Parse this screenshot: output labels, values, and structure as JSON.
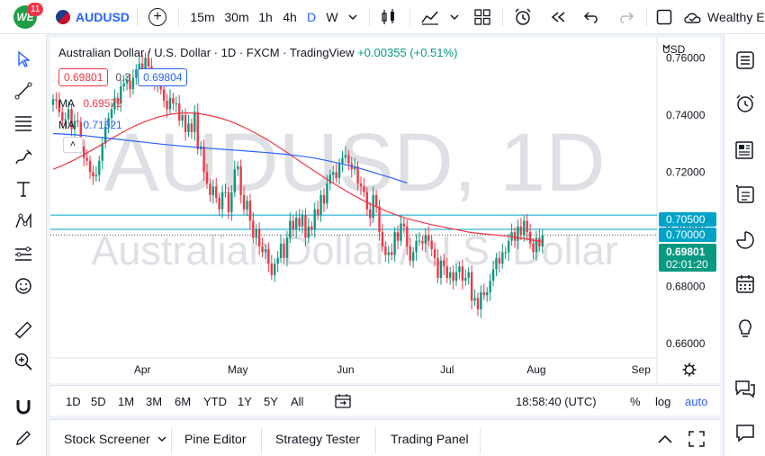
{
  "header": {
    "notification_count": "11",
    "logo_text": "WE",
    "symbol": "AUDUSD",
    "add_symbol": "+",
    "timeframes": [
      "15m",
      "30m",
      "1h",
      "4h",
      "D",
      "W"
    ],
    "active_timeframe": "D",
    "account_label": "Wealthy E"
  },
  "legend": {
    "instrument": "Australian Dollar / U.S. Dollar · 1D · FXCM · TradingView",
    "change": "+0.00355 (+0.51%)",
    "sell_price": "0.69801",
    "spread": "0.3",
    "buy_price": "0.69804",
    "ma1_label": "MA",
    "ma1_value": "0.69572",
    "ma2_label": "MA",
    "ma2_value": "0.71621",
    "collapse": "˄"
  },
  "watermark": {
    "main": "AUDUSD, 1D",
    "sub": "Australian Dollar / U.S. Dollar"
  },
  "price_axis": {
    "currency": "USD",
    "ticks": [
      "0.76000",
      "0.74000",
      "0.72000",
      "0.70000",
      "0.68000",
      "0.66000"
    ],
    "tag_upper": "0.70500",
    "tag_lower": "0.70000",
    "current_price": "0.69801",
    "countdown": "02:01:20"
  },
  "time_axis": {
    "labels": [
      "Apr",
      "May",
      "Jun",
      "Jul",
      "Aug",
      "Sep"
    ]
  },
  "range_bar": {
    "ranges": [
      "1D",
      "5D",
      "1M",
      "3M",
      "6M",
      "YTD",
      "1Y",
      "5Y",
      "All"
    ],
    "clock": "18:58:40 (UTC)",
    "percent": "%",
    "log": "log",
    "auto": "auto"
  },
  "bottom_tabs": [
    "Stock Screener",
    "Pine Editor",
    "Strategy Tester",
    "Trading Panel"
  ],
  "colors": {
    "up": "#089981",
    "down": "#f23645",
    "ma_fast": "#f23645",
    "ma_slow": "#2962ff",
    "hline": "#00a3c7",
    "accent": "#2962ff"
  },
  "chart_data": {
    "type": "candlestick",
    "y_range": [
      0.655,
      0.767
    ],
    "x_labels": [
      "Apr",
      "May",
      "Jun",
      "Jul",
      "Aug",
      "Sep"
    ],
    "horizontal_levels": [
      0.705,
      0.7
    ],
    "last_price": 0.69801,
    "closes": [
      0.7455,
      0.745,
      0.741,
      0.738,
      0.7385,
      0.742,
      0.735,
      0.738,
      0.7375,
      0.729,
      0.725,
      0.724,
      0.72,
      0.7185,
      0.719,
      0.724,
      0.73,
      0.736,
      0.739,
      0.742,
      0.746,
      0.744,
      0.75,
      0.751,
      0.752,
      0.749,
      0.753,
      0.756,
      0.758,
      0.755,
      0.76,
      0.757,
      0.754,
      0.751,
      0.752,
      0.749,
      0.745,
      0.742,
      0.746,
      0.744,
      0.744,
      0.738,
      0.74,
      0.734,
      0.737,
      0.734,
      0.741,
      0.728,
      0.729,
      0.72,
      0.716,
      0.712,
      0.715,
      0.711,
      0.707,
      0.713,
      0.713,
      0.706,
      0.713,
      0.721,
      0.722,
      0.712,
      0.707,
      0.71,
      0.703,
      0.697,
      0.7,
      0.694,
      0.692,
      0.693,
      0.688,
      0.684,
      0.688,
      0.69,
      0.695,
      0.69,
      0.697,
      0.703,
      0.7,
      0.704,
      0.701,
      0.705,
      0.697,
      0.701,
      0.7,
      0.707,
      0.705,
      0.712,
      0.709,
      0.716,
      0.719,
      0.72,
      0.718,
      0.723,
      0.725,
      0.726,
      0.723,
      0.721,
      0.722,
      0.716,
      0.715,
      0.713,
      0.707,
      0.704,
      0.712,
      0.708,
      0.699,
      0.694,
      0.691,
      0.692,
      0.691,
      0.699,
      0.696,
      0.702,
      0.701,
      0.694,
      0.689,
      0.692,
      0.696,
      0.696,
      0.695,
      0.698,
      0.696,
      0.693,
      0.69,
      0.683,
      0.689,
      0.687,
      0.683,
      0.685,
      0.682,
      0.685,
      0.687,
      0.682,
      0.683,
      0.685,
      0.675,
      0.676,
      0.672,
      0.678,
      0.677,
      0.678,
      0.682,
      0.686,
      0.69,
      0.688,
      0.692,
      0.692,
      0.696,
      0.699,
      0.696,
      0.701,
      0.698,
      0.703,
      0.699,
      0.695,
      0.692,
      0.697,
      0.694,
      0.698
    ],
    "ma_fast": [
      0.721,
      0.7223,
      0.7238,
      0.7255,
      0.7273,
      0.7292,
      0.7311,
      0.733,
      0.7348,
      0.7364,
      0.7377,
      0.7389,
      0.7398,
      0.7404,
      0.7407,
      0.7407,
      0.7404,
      0.7398,
      0.739,
      0.738,
      0.7367,
      0.7352,
      0.7335,
      0.7317,
      0.7297,
      0.7276,
      0.7254,
      0.7232,
      0.721,
      0.7189,
      0.7168,
      0.7148,
      0.7129,
      0.7111,
      0.7094,
      0.7079,
      0.7065,
      0.7052,
      0.7041,
      0.7032,
      0.7024,
      0.7016,
      0.701,
      0.7003,
      0.6997,
      0.699,
      0.6986,
      0.6983,
      0.698,
      0.6977,
      0.6972,
      0.6967,
      0.6962,
      0.6957
    ],
    "ma_slow": [
      0.7335,
      0.7332,
      0.7328,
      0.7322,
      0.7316,
      0.731,
      0.7304,
      0.7298,
      0.7293,
      0.7288,
      0.7284,
      0.728,
      0.7276,
      0.7272,
      0.7268,
      0.7263,
      0.7257,
      0.7249,
      0.7238,
      0.7226,
      0.7212,
      0.7196,
      0.718,
      0.7162
    ]
  }
}
